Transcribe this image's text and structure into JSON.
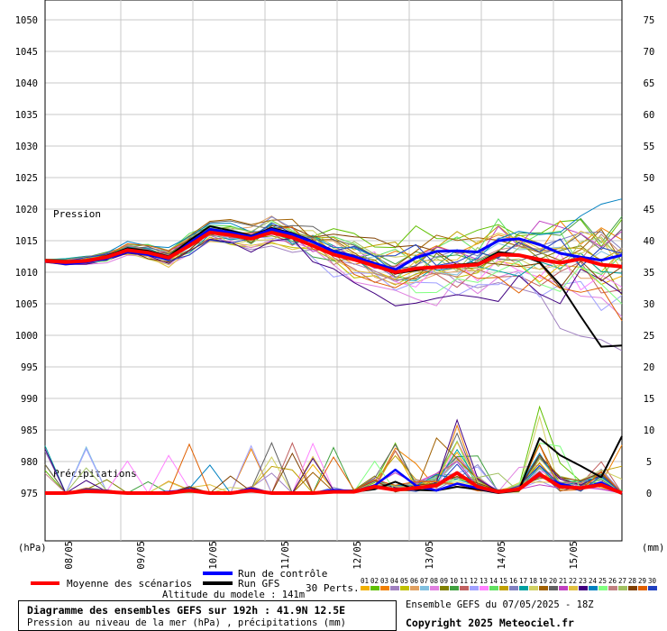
{
  "chart_data": {
    "type": "line",
    "title": "Diagramme des ensembles GEFS sur 192h : 41.9N 12.5E",
    "subtitle": "Pression au niveau de la mer (hPa) , précipitations (mm)",
    "left_axis": {
      "unit": "(hPa)",
      "ticks": [
        1050,
        1045,
        1040,
        1035,
        1030,
        1025,
        1020,
        1015,
        1010,
        1005,
        1000,
        995,
        990,
        985,
        980,
        975
      ],
      "ylim": [
        975,
        1050
      ]
    },
    "right_axis": {
      "unit": "(mm)",
      "ticks": [
        75,
        70,
        65,
        60,
        55,
        50,
        45,
        40,
        35,
        30,
        25,
        20,
        15,
        10,
        5,
        0
      ],
      "ylim": [
        0,
        75
      ]
    },
    "x_axis": {
      "labels": [
        "08/05",
        "09/05",
        "10/05",
        "11/05",
        "12/05",
        "13/05",
        "14/05",
        "15/05"
      ],
      "hours_range": [
        0,
        192
      ]
    },
    "panel_labels": {
      "pressure": "Pression",
      "precip": "Précipitations"
    },
    "legend": {
      "mean": "Moyenne des scénarios",
      "control": "Run de contrôle",
      "gfs": "Run GFS",
      "perts_label": "30 Perts.",
      "perts_numbers": [
        "01",
        "02",
        "03",
        "04",
        "05",
        "06",
        "07",
        "08",
        "09",
        "10",
        "11",
        "12",
        "13",
        "14",
        "15",
        "16",
        "17",
        "18",
        "19",
        "20",
        "21",
        "22",
        "23",
        "24",
        "25",
        "26",
        "27",
        "28",
        "29",
        "30"
      ]
    },
    "altitude": "Altitude du modele : 141m",
    "run_info": "Ensemble GEFS du 07/05/2025 - 18Z",
    "copyright": "Copyright 2025 Meteociel.fr",
    "pressure_series": {
      "mean": [
        1011.8,
        1011.6,
        1011.8,
        1012.4,
        1013.5,
        1013.1,
        1012.3,
        1014.2,
        1016.3,
        1015.9,
        1015.3,
        1016.3,
        1015.5,
        1014.2,
        1012.8,
        1012.0,
        1011.0,
        1010.0,
        1010.6,
        1010.8,
        1011.0,
        1011.2,
        1012.8,
        1012.7,
        1012.0,
        1011.5,
        1012.1,
        1011.2,
        1010.9
      ],
      "control": [
        1011.8,
        1011.3,
        1011.6,
        1012.2,
        1013.3,
        1012.8,
        1012.1,
        1014.6,
        1016.8,
        1016.3,
        1015.6,
        1016.8,
        1016.0,
        1014.8,
        1013.3,
        1012.5,
        1011.4,
        1010.4,
        1012.3,
        1013.3,
        1013.4,
        1013.2,
        1015.0,
        1015.3,
        1014.4,
        1013.0,
        1012.4,
        1011.9,
        1012.7
      ],
      "gfs": [
        1011.8,
        1011.4,
        1011.7,
        1012.6,
        1013.8,
        1013.4,
        1012.5,
        1015.0,
        1017.3,
        1016.6,
        1015.8,
        1017.0,
        1016.2,
        1014.9,
        1013.4,
        1012.6,
        1011.0,
        1009.8,
        1010.3,
        1010.8,
        1011.2,
        1011.4,
        1013.2,
        1012.8,
        1011.6,
        1008.0,
        1003.0,
        998.2,
        998.4
      ]
    },
    "precip_series": {
      "mean": [
        0,
        0,
        0.3,
        0.2,
        0,
        0,
        0,
        0.4,
        0,
        0,
        0.4,
        0,
        0,
        0,
        0.2,
        0.2,
        1.0,
        0.5,
        0.8,
        1.2,
        3.2,
        1.0,
        0.2,
        0.6,
        3.0,
        1.0,
        0.8,
        1.3,
        0
      ],
      "control": [
        0,
        0,
        0.4,
        0.3,
        0,
        0,
        0.2,
        0.5,
        0,
        0,
        0.7,
        0,
        0,
        0,
        0.5,
        0.3,
        1.2,
        3.7,
        1.2,
        0.4,
        1.5,
        0.8,
        0.1,
        0.6,
        2.8,
        1.5,
        0.7,
        1.7,
        0
      ],
      "gfs": [
        0,
        0,
        0.2,
        0.1,
        0,
        0,
        0,
        0.3,
        0,
        0,
        0.5,
        0,
        0,
        0,
        0.3,
        0.2,
        0.6,
        1.8,
        0.5,
        0.4,
        1.0,
        0.6,
        0,
        0.4,
        8.7,
        6.0,
        4.3,
        2.5,
        9.0
      ]
    }
  }
}
